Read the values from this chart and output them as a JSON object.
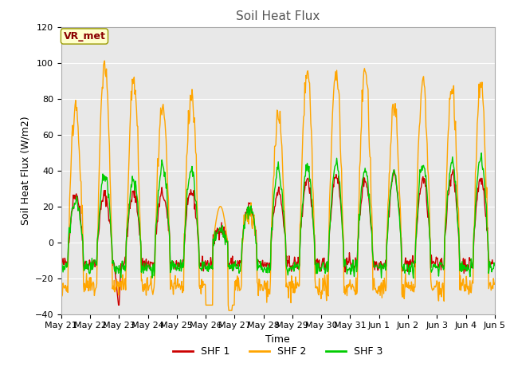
{
  "title": "Soil Heat Flux",
  "ylabel": "Soil Heat Flux (W/m2)",
  "xlabel": "Time",
  "ylim": [
    -40,
    120
  ],
  "yticks": [
    -40,
    -20,
    0,
    20,
    40,
    60,
    80,
    100,
    120
  ],
  "shf1_color": "#cc0000",
  "shf2_color": "#ffa500",
  "shf3_color": "#00cc00",
  "legend_labels": [
    "SHF 1",
    "SHF 2",
    "SHF 3"
  ],
  "annotation_text": "VR_met",
  "annotation_color": "#8b0000",
  "annotation_bg": "#ffffcc",
  "annotation_edge": "#999900",
  "num_days": 15,
  "fig_bg": "#ffffff",
  "plot_bg": "#e8e8e8",
  "grid_color": "#ffffff",
  "linewidth": 1.0,
  "title_fontsize": 11,
  "axis_fontsize": 9,
  "tick_fontsize": 8
}
